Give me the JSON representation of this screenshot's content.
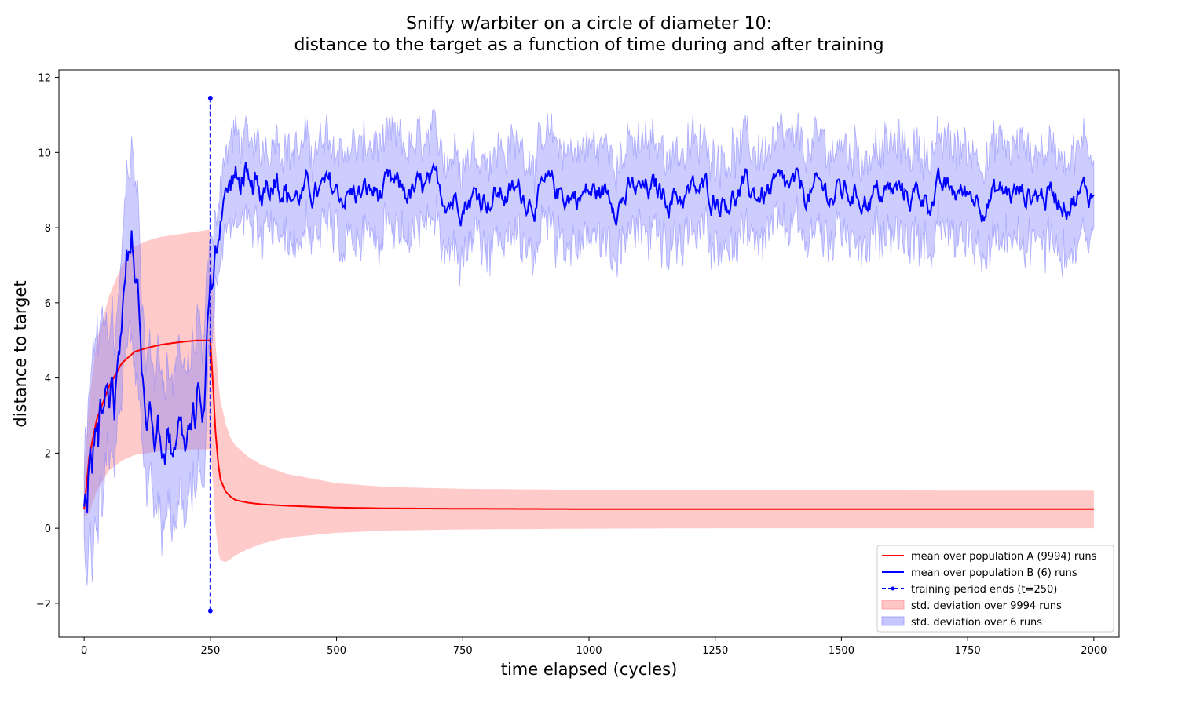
{
  "chart_data": {
    "type": "line",
    "title_line1": "Sniffy w/arbiter on a circle of diameter 10:",
    "title_line2": "distance to the target as a function of time during and after training",
    "xlabel": "time elapsed (cycles)",
    "ylabel": "distance to target",
    "xlim": [
      -50,
      2050
    ],
    "ylim": [
      -2.9,
      12.2
    ],
    "xticks": [
      0,
      250,
      500,
      750,
      1000,
      1250,
      1500,
      1750,
      2000
    ],
    "xtick_labels": [
      "0",
      "250",
      "500",
      "750",
      "1000",
      "1250",
      "1500",
      "1750",
      "2000"
    ],
    "yticks": [
      -2,
      0,
      2,
      4,
      6,
      8,
      10,
      12
    ],
    "ytick_labels": [
      "−2",
      "0",
      "2",
      "4",
      "6",
      "8",
      "10",
      "12"
    ],
    "grid": false,
    "legend_position": "lower-right",
    "colors": {
      "population_a": "#ff0000",
      "population_b": "#0000ff",
      "band_a": "#ff8080",
      "band_b": "#8080ff"
    },
    "series": [
      {
        "name": "mean over population A (9994) runs",
        "style": "solid",
        "color": "#ff0000",
        "x": [
          0,
          10,
          25,
          50,
          75,
          100,
          125,
          150,
          175,
          200,
          225,
          250,
          255,
          260,
          265,
          270,
          280,
          290,
          300,
          325,
          350,
          400,
          500,
          600,
          750,
          1000,
          1250,
          1500,
          1750,
          2000
        ],
        "y": [
          0.5,
          1.9,
          2.9,
          3.8,
          4.4,
          4.7,
          4.8,
          4.88,
          4.93,
          4.97,
          5.0,
          5.0,
          3.9,
          2.6,
          1.8,
          1.3,
          0.98,
          0.84,
          0.75,
          0.68,
          0.64,
          0.6,
          0.55,
          0.53,
          0.52,
          0.51,
          0.51,
          0.51,
          0.51,
          0.51
        ]
      },
      {
        "name": "mean over population B (6) runs",
        "style": "solid",
        "color": "#0000ff",
        "x": [
          0,
          3,
          5,
          8,
          12,
          16,
          20,
          25,
          28,
          32,
          36,
          40,
          45,
          50,
          55,
          60,
          65,
          70,
          75,
          80,
          85,
          90,
          95,
          100,
          105,
          110,
          115,
          120,
          125,
          130,
          135,
          140,
          145,
          150,
          155,
          160,
          165,
          170,
          175,
          180,
          185,
          190,
          195,
          200,
          205,
          210,
          215,
          220,
          225,
          230,
          235,
          240,
          245,
          250,
          255,
          260,
          265,
          270,
          275,
          280,
          290,
          300,
          310,
          320,
          330,
          340,
          350,
          360,
          370,
          380,
          390,
          400
        ],
        "y": [
          0.5,
          1.0,
          0.2,
          1.3,
          2.0,
          1.6,
          2.4,
          2.8,
          2.2,
          3.6,
          2.8,
          3.3,
          3.9,
          3.1,
          4.3,
          3.0,
          4.4,
          4.6,
          5.7,
          6.5,
          7.4,
          7.2,
          7.8,
          6.6,
          6.9,
          5.6,
          4.1,
          3.2,
          2.6,
          3.3,
          2.7,
          2.1,
          2.9,
          2.3,
          2.0,
          1.9,
          2.6,
          2.3,
          2.0,
          2.2,
          2.6,
          3.0,
          2.6,
          2.0,
          2.5,
          2.6,
          3.2,
          2.8,
          3.8,
          3.5,
          2.6,
          3.9,
          5.8,
          6.6,
          6.2,
          7.4,
          7.6,
          8.1,
          8.7,
          8.9,
          9.2,
          9.4,
          9.1,
          9.5,
          9.0,
          9.3,
          8.7,
          9.2,
          8.9,
          9.4,
          8.8,
          9.0
        ],
        "steady_mean": 8.9,
        "steady_range": [
          7.6,
          10.0
        ],
        "steady_until": 2000
      },
      {
        "name": "training period ends (t=250)",
        "style": "dashed",
        "marker": "dot",
        "color": "#0000ff",
        "x": [
          250,
          250
        ],
        "y": [
          -2.2,
          11.45
        ]
      }
    ],
    "bands": [
      {
        "name": "std. deviation over 9994 runs",
        "color": "#ff8080",
        "x": [
          0,
          10,
          25,
          50,
          75,
          100,
          125,
          150,
          175,
          200,
          225,
          250,
          255,
          260,
          265,
          270,
          280,
          290,
          300,
          325,
          350,
          400,
          500,
          600,
          750,
          1000,
          1250,
          1500,
          1750,
          2000
        ],
        "lower": [
          0.3,
          0.4,
          1.0,
          1.55,
          1.8,
          1.95,
          2.0,
          2.05,
          2.1,
          2.1,
          2.1,
          2.1,
          1.3,
          0.1,
          -0.6,
          -0.85,
          -0.9,
          -0.82,
          -0.72,
          -0.55,
          -0.42,
          -0.25,
          -0.12,
          -0.06,
          -0.03,
          -0.01,
          0.0,
          0.0,
          0.0,
          0.0
        ],
        "upper": [
          1.6,
          3.4,
          5.0,
          6.2,
          7.0,
          7.5,
          7.65,
          7.75,
          7.8,
          7.85,
          7.9,
          7.95,
          6.6,
          5.0,
          4.0,
          3.4,
          2.8,
          2.4,
          2.2,
          1.9,
          1.7,
          1.45,
          1.2,
          1.1,
          1.05,
          1.02,
          1.01,
          1.01,
          1.0,
          1.0
        ]
      },
      {
        "name": "std. deviation over 6 runs",
        "color": "#8080ff",
        "half_width": [
          1.0,
          1.6,
          1.7,
          1.8,
          2.2,
          2.8,
          2.4,
          2.6,
          2.5,
          2.2,
          2.9,
          2.0,
          1.6,
          1.9,
          1.8,
          2.0,
          1.7,
          1.5,
          2.0,
          1.9,
          2.4,
          1.8,
          2.7,
          2.3,
          2.5,
          2.0,
          1.7,
          1.5,
          1.9,
          1.6,
          1.8,
          1.7,
          2.0,
          1.9,
          2.1,
          2.0,
          1.9,
          1.6,
          1.8,
          1.9,
          2.2,
          2.0,
          1.8,
          2.3,
          1.7,
          1.6,
          2.1,
          1.7,
          1.9,
          1.8,
          1.9,
          1.8,
          1.3,
          1.1,
          1.2,
          1.1,
          1.0,
          0.9,
          1.0,
          1.1,
          1.0,
          1.2,
          1.1,
          1.0,
          1.2,
          1.1,
          1.2,
          1.1,
          1.0,
          1.2,
          1.1,
          1.2
        ],
        "steady_half_width": 1.2
      }
    ],
    "annotations": []
  }
}
